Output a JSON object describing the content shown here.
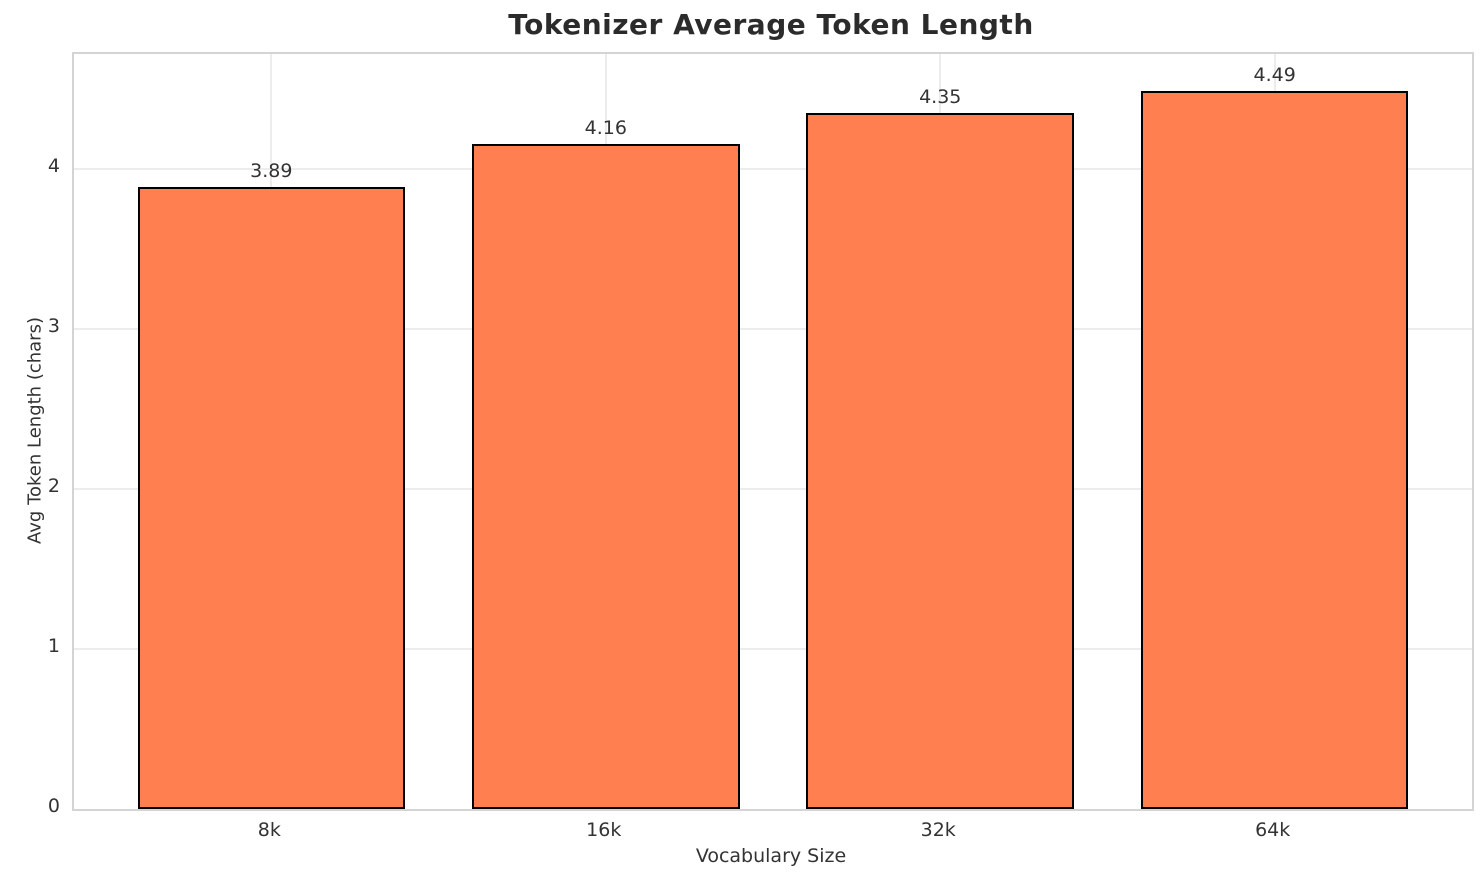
{
  "chart": {
    "title": "Tokenizer Average Token Length",
    "xlabel": "Vocabulary Size",
    "ylabel": "Avg Token Length (chars)"
  },
  "chart_data": {
    "type": "bar",
    "title": "Tokenizer Average Token Length",
    "xlabel": "Vocabulary Size",
    "ylabel": "Avg Token Length (chars)",
    "categories": [
      "8k",
      "16k",
      "32k",
      "64k"
    ],
    "values": [
      3.89,
      4.16,
      4.35,
      4.49
    ],
    "value_labels": [
      "3.89",
      "4.16",
      "4.35",
      "4.49"
    ],
    "yticks": [
      0,
      1,
      2,
      3,
      4
    ],
    "ylim": [
      0,
      4.72
    ],
    "grid": true,
    "legend": "none",
    "bar_color": "#FF7F50",
    "bar_edge_color": "#000000",
    "colors": {
      "grid": "#ececec",
      "spine": "#d4d4d4",
      "text": "#333333",
      "title": "#2b2b2b",
      "background": "#ffffff"
    }
  }
}
